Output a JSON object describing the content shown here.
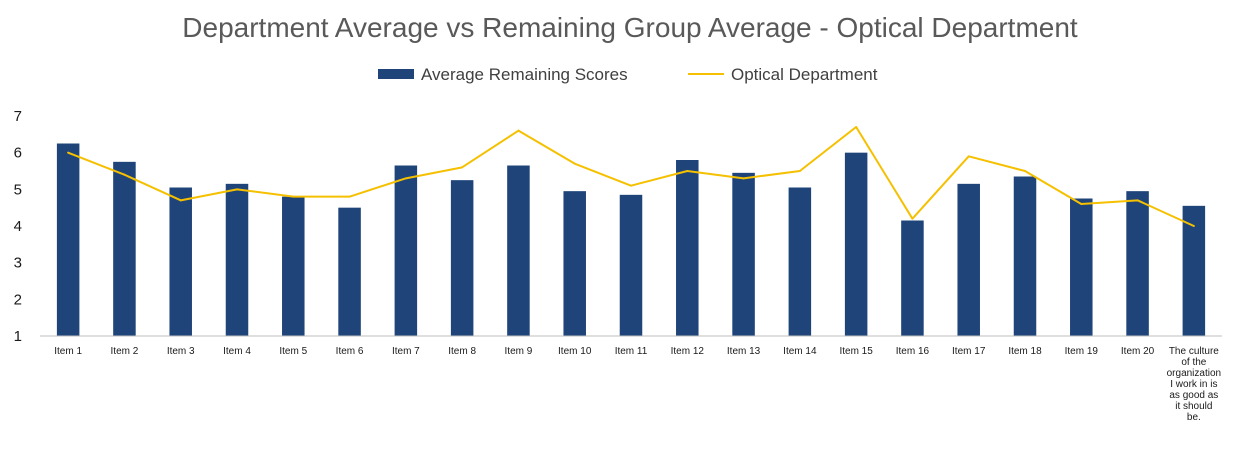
{
  "chart_data": {
    "type": "bar",
    "title": "Department Average vs Remaining Group Average - Optical Department",
    "categories": [
      "Item 1",
      "Item 2",
      "Item 3",
      "Item 4",
      "Item 5",
      "Item 6",
      "Item 7",
      "Item 8",
      "Item 9",
      "Item 10",
      "Item 11",
      "Item 12",
      "Item 13",
      "Item 14",
      "Item 15",
      "Item 16",
      "Item 17",
      "Item 18",
      "Item 19",
      "Item 20",
      "The culture of the organization I work in is as good as it should be."
    ],
    "series": [
      {
        "name": "Average Remaining Scores",
        "kind": "bar",
        "color": "#1f4479",
        "values": [
          6.25,
          5.75,
          5.05,
          5.15,
          4.8,
          4.5,
          5.65,
          5.25,
          5.65,
          4.95,
          4.85,
          5.8,
          5.45,
          5.05,
          6.0,
          4.15,
          5.15,
          5.35,
          4.75,
          4.95,
          4.55
        ]
      },
      {
        "name": "Optical Department",
        "kind": "line",
        "color": "#f5c000",
        "values": [
          6.0,
          5.4,
          4.7,
          5.0,
          4.8,
          4.8,
          5.3,
          5.6,
          6.6,
          5.7,
          5.1,
          5.5,
          5.3,
          5.5,
          6.7,
          4.2,
          5.9,
          5.5,
          4.6,
          4.7,
          4.0
        ]
      }
    ],
    "yticks": [
      1,
      2,
      3,
      4,
      5,
      6,
      7
    ],
    "ylim": [
      1,
      7
    ],
    "xlabel": "",
    "ylabel": "",
    "legend_position": "top-center",
    "grid": false
  }
}
